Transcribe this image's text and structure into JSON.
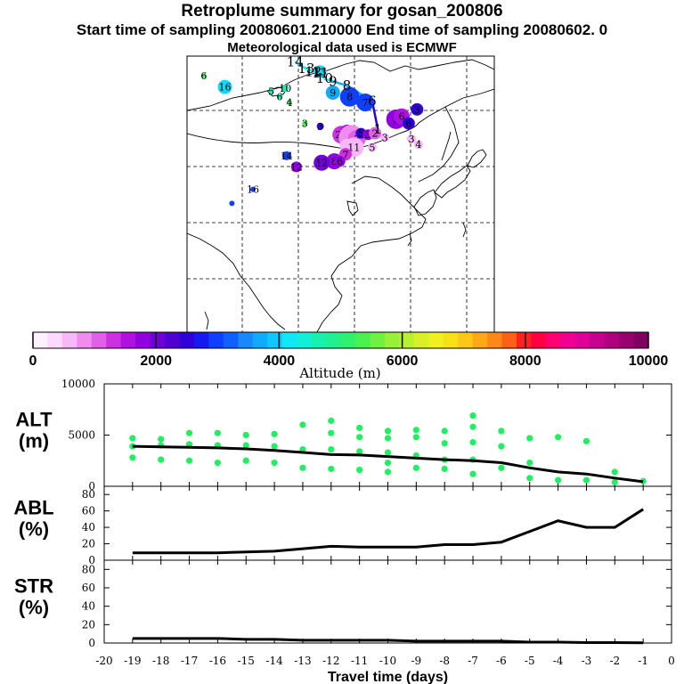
{
  "header": {
    "title": "Retroplume summary for gosan_200806",
    "sampling": "Start time of sampling 20080601.210000     End time of sampling 20080602.     0",
    "met": "Meteorological data used is ECMWF"
  },
  "colorbar": {
    "title": "Altitude (m)",
    "ticks": [
      "0",
      "2000",
      "4000",
      "6000",
      "8000",
      "10000"
    ],
    "colors": [
      "#fff0ff",
      "#ffd8ff",
      "#f8b8f8",
      "#f08cf0",
      "#e060e8",
      "#cc30e0",
      "#b010e0",
      "#9000e0",
      "#7000d8",
      "#5000d0",
      "#3000d8",
      "#1818f0",
      "#1040ff",
      "#1060ff",
      "#1888ff",
      "#10aaff",
      "#10c8ff",
      "#10e8f8",
      "#10f0d8",
      "#18f0b0",
      "#20f090",
      "#30f070",
      "#48f050",
      "#70f040",
      "#98f038",
      "#b8f030",
      "#d8f028",
      "#f0f020",
      "#f8e018",
      "#ffc818",
      "#ffa818",
      "#ff8818",
      "#ff6018",
      "#ff2020",
      "#ff0040",
      "#ff0070",
      "#f00090",
      "#e00098",
      "#c80090",
      "#b00080",
      "#980070",
      "#800060"
    ]
  },
  "map_labels": [
    {
      "text": "14",
      "lon": 103.5,
      "lat": 61.0
    },
    {
      "text": "13",
      "lon": 107.5,
      "lat": 58.5
    },
    {
      "text": "12",
      "lon": 110.0,
      "lat": 57.5
    },
    {
      "text": "11",
      "lon": 112.5,
      "lat": 57.0
    },
    {
      "text": "10",
      "lon": 114.0,
      "lat": 55.0
    },
    {
      "text": "9",
      "lon": 117.0,
      "lat": 54.0
    },
    {
      "text": "8",
      "lon": 122.0,
      "lat": 52.5
    },
    {
      "text": "6",
      "lon": 131.0,
      "lat": 47.0
    },
    {
      "text": "1",
      "lon": 133.0,
      "lat": 37.0
    }
  ],
  "map_points": [
    {
      "label": "13",
      "lon": 112.5,
      "lat": 57.5,
      "size": 7,
      "color": "#10d8f8"
    },
    {
      "label": "6",
      "lon": 71.0,
      "lat": 56.0,
      "size": 3,
      "color": "#48f050"
    },
    {
      "label": "16",
      "lon": 78.5,
      "lat": 52.0,
      "size": 8,
      "color": "#10d8f8"
    },
    {
      "label": "5",
      "lon": 95.0,
      "lat": 50.5,
      "size": 3,
      "color": "#18f0b0"
    },
    {
      "label": "10",
      "lon": 100.0,
      "lat": 51.5,
      "size": 4,
      "color": "#18f0b0"
    },
    {
      "label": "9",
      "lon": 117.0,
      "lat": 50.0,
      "size": 8,
      "color": "#10aaff"
    },
    {
      "label": "8",
      "lon": 123.0,
      "lat": 48.5,
      "size": 11,
      "color": "#1040ff"
    },
    {
      "label": "7",
      "lon": 128.5,
      "lat": 46.5,
      "size": 10,
      "color": "#1040ff"
    },
    {
      "label": "6",
      "lon": 98.0,
      "lat": 48.5,
      "size": 3,
      "color": "#18f0b0"
    },
    {
      "label": "4",
      "lon": 101.5,
      "lat": 46.5,
      "size": 3,
      "color": "#48f050"
    },
    {
      "label": "5",
      "lon": 139.5,
      "lat": 40.5,
      "size": 11,
      "color": "#9000e0"
    },
    {
      "label": "6",
      "lon": 141.5,
      "lat": 41.5,
      "size": 9,
      "color": "#b010e0"
    },
    {
      "label": "3",
      "lon": 147.0,
      "lat": 44.0,
      "size": 7,
      "color": "#3000d8"
    },
    {
      "label": "6",
      "lon": 144.0,
      "lat": 39.0,
      "size": 7,
      "color": "#3000d8"
    },
    {
      "label": "3",
      "lon": 107.0,
      "lat": 39.0,
      "size": 3,
      "color": "#48f050"
    },
    {
      "label": "3",
      "lon": 112.5,
      "lat": 38.0,
      "size": 4,
      "color": "#3000d8"
    },
    {
      "label": "23",
      "lon": 120.0,
      "lat": 35.0,
      "size": 10,
      "color": "#cc30e0"
    },
    {
      "label": "4",
      "lon": 122.0,
      "lat": 36.0,
      "size": 8,
      "color": "#b010e0"
    },
    {
      "label": "2",
      "lon": 123.5,
      "lat": 34.0,
      "size": 14,
      "color": "#f08cf0"
    },
    {
      "label": "3",
      "lon": 125.5,
      "lat": 33.5,
      "size": 10,
      "color": "#e060e8"
    },
    {
      "label": "5",
      "lon": 127.0,
      "lat": 35.5,
      "size": 6,
      "color": "#3000d8"
    },
    {
      "label": "3",
      "lon": 129.5,
      "lat": 35.0,
      "size": 6,
      "color": "#9000e0"
    },
    {
      "label": "2",
      "lon": 132.0,
      "lat": 35.5,
      "size": 7,
      "color": "#e060e8"
    },
    {
      "label": "3",
      "lon": 135.5,
      "lat": 34.0,
      "size": 5,
      "color": "#f8b8f8"
    },
    {
      "label": "3",
      "lon": 145.0,
      "lat": 33.5,
      "size": 5,
      "color": "#f8b8f8"
    },
    {
      "label": "4",
      "lon": 147.5,
      "lat": 31.5,
      "size": 5,
      "color": "#f8b8f8"
    },
    {
      "label": "1",
      "lon": 122.0,
      "lat": 31.0,
      "size": 8,
      "color": "#f8b8f8"
    },
    {
      "label": "11",
      "lon": 124.5,
      "lat": 30.5,
      "size": 11,
      "color": "#f8b8f8"
    },
    {
      "label": "5",
      "lon": 131.0,
      "lat": 30.5,
      "size": 5,
      "color": "#f8b8f8"
    },
    {
      "label": "14",
      "lon": 100.5,
      "lat": 27.5,
      "size": 5,
      "color": "#1040ff"
    },
    {
      "label": "7",
      "lon": 121.5,
      "lat": 28.0,
      "size": 7,
      "color": "#cc30e0"
    },
    {
      "label": "8",
      "lon": 117.5,
      "lat": 25.5,
      "size": 9,
      "color": "#9000e0"
    },
    {
      "label": "6",
      "lon": 119.5,
      "lat": 25.5,
      "size": 6,
      "color": "#9000e0"
    },
    {
      "label": "12",
      "lon": 113.0,
      "lat": 25.0,
      "size": 9,
      "color": "#7000d8"
    },
    {
      "label": "12",
      "lon": 104.0,
      "lat": 23.5,
      "size": 6,
      "color": "#9000e0"
    },
    {
      "label": "16",
      "lon": 88.5,
      "lat": 15.5,
      "size": 3,
      "color": "#1040ff"
    },
    {
      "label": "",
      "lon": 81.0,
      "lat": 10.5,
      "size": 3,
      "color": "#1040ff"
    }
  ],
  "chart_data": [
    {
      "type": "scatter",
      "panel": "ALT",
      "ylabel": "ALT\n(m)",
      "ylim": [
        0,
        10000
      ],
      "yticks": [
        "0",
        "5000",
        "10000"
      ],
      "xlim": [
        -20,
        0
      ],
      "line": {
        "x": [
          -19,
          -18,
          -17,
          -16,
          -15,
          -14,
          -13,
          -12,
          -11,
          -10,
          -9,
          -8,
          -7,
          -6,
          -5,
          -4,
          -3,
          -2,
          -1
        ],
        "y": [
          3900,
          3850,
          3800,
          3750,
          3650,
          3500,
          3300,
          3100,
          3050,
          2900,
          2750,
          2600,
          2500,
          2300,
          1800,
          1400,
          1200,
          800,
          450
        ]
      },
      "points": [
        {
          "x": -19,
          "y": [
            4700,
            3900,
            2800
          ]
        },
        {
          "x": -18,
          "y": [
            4600,
            4000,
            2600
          ]
        },
        {
          "x": -17,
          "y": [
            5200,
            4100,
            2500
          ]
        },
        {
          "x": -16,
          "y": [
            5200,
            4000,
            2300
          ]
        },
        {
          "x": -15,
          "y": [
            5000,
            4000,
            2500
          ]
        },
        {
          "x": -14,
          "y": [
            5100,
            3900,
            2300
          ]
        },
        {
          "x": -13,
          "y": [
            6000,
            3600,
            1800
          ]
        },
        {
          "x": -12,
          "y": [
            6400,
            5200,
            3600,
            1700
          ]
        },
        {
          "x": -11,
          "y": [
            5700,
            4800,
            3400,
            1600
          ]
        },
        {
          "x": -10,
          "y": [
            5400,
            4700,
            3300,
            2300,
            1400
          ]
        },
        {
          "x": -9,
          "y": [
            5500,
            4800,
            3000,
            1800
          ]
        },
        {
          "x": -8,
          "y": [
            5400,
            4200,
            2600,
            1700
          ]
        },
        {
          "x": -7,
          "y": [
            6900,
            5800,
            4300,
            2600,
            1200
          ]
        },
        {
          "x": -6,
          "y": [
            5400,
            3900,
            1800
          ]
        },
        {
          "x": -5,
          "y": [
            4700,
            2300,
            800
          ]
        },
        {
          "x": -4,
          "y": [
            4800,
            600
          ]
        },
        {
          "x": -3,
          "y": [
            4400,
            600
          ]
        },
        {
          "x": -2,
          "y": [
            1400,
            400
          ]
        },
        {
          "x": -1,
          "y": [
            500
          ]
        }
      ]
    },
    {
      "type": "line",
      "panel": "ABL",
      "ylabel": "ABL\n(%)",
      "ylim": [
        0,
        90
      ],
      "yticks": [
        "0",
        "20",
        "40",
        "60",
        "80"
      ],
      "xlim": [
        -20,
        0
      ],
      "x": [
        -19,
        -18,
        -17,
        -16,
        -15,
        -14,
        -13,
        -12,
        -11,
        -10,
        -9,
        -8,
        -7,
        -6,
        -5,
        -4,
        -3,
        -2,
        -1
      ],
      "y": [
        9,
        9,
        9,
        9,
        10,
        11,
        14,
        17,
        16,
        16,
        16,
        19,
        19,
        22,
        35,
        48,
        40,
        40,
        62
      ]
    },
    {
      "type": "line",
      "panel": "STR",
      "ylabel": "STR\n(%)",
      "ylim": [
        0,
        90
      ],
      "yticks": [
        "0",
        "20",
        "40",
        "60",
        "80"
      ],
      "xlim": [
        -20,
        0
      ],
      "x": [
        -19,
        -18,
        -17,
        -16,
        -15,
        -14,
        -13,
        -12,
        -11,
        -10,
        -9,
        -8,
        -7,
        -6,
        -5,
        -4,
        -3,
        -2,
        -1
      ],
      "y": [
        5,
        5,
        5,
        5,
        4,
        4,
        3,
        3,
        3,
        3,
        2,
        2,
        2,
        2,
        1,
        1,
        0.5,
        0.5,
        0.3
      ],
      "xlabel": "Travel time (days)",
      "xticks": [
        "-20",
        "-19",
        "-18",
        "-17",
        "-16",
        "-15",
        "-14",
        "-13",
        "-12",
        "-11",
        "-10",
        "-9",
        "-8",
        "-7",
        "-6",
        "-5",
        "-4",
        "-3",
        "-2",
        "-1",
        "0"
      ]
    }
  ]
}
